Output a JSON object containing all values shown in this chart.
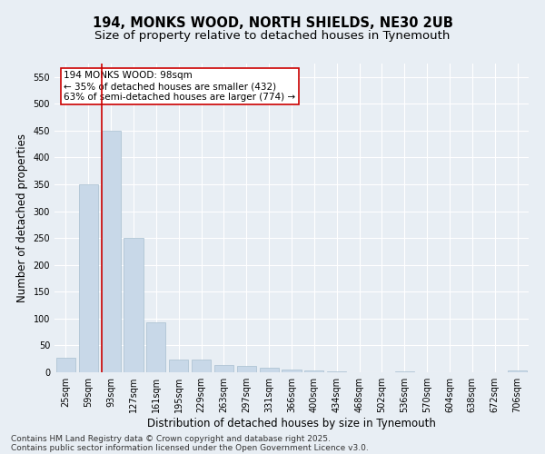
{
  "title_line1": "194, MONKS WOOD, NORTH SHIELDS, NE30 2UB",
  "title_line2": "Size of property relative to detached houses in Tynemouth",
  "xlabel": "Distribution of detached houses by size in Tynemouth",
  "ylabel": "Number of detached properties",
  "bar_color": "#c8d8e8",
  "bar_edge_color": "#a8bfd0",
  "background_color": "#e8eef4",
  "grid_color": "#ffffff",
  "categories": [
    "25sqm",
    "59sqm",
    "93sqm",
    "127sqm",
    "161sqm",
    "195sqm",
    "229sqm",
    "263sqm",
    "297sqm",
    "331sqm",
    "366sqm",
    "400sqm",
    "434sqm",
    "468sqm",
    "502sqm",
    "536sqm",
    "570sqm",
    "604sqm",
    "638sqm",
    "672sqm",
    "706sqm"
  ],
  "values": [
    27,
    350,
    450,
    250,
    93,
    24,
    23,
    13,
    11,
    8,
    5,
    4,
    1,
    0,
    0,
    1,
    0,
    0,
    0,
    0,
    3
  ],
  "ylim": [
    0,
    575
  ],
  "yticks": [
    0,
    50,
    100,
    150,
    200,
    250,
    300,
    350,
    400,
    450,
    500,
    550
  ],
  "property_line_bin": 2,
  "property_line_color": "#cc0000",
  "annotation_text": "194 MONKS WOOD: 98sqm\n← 35% of detached houses are smaller (432)\n63% of semi-detached houses are larger (774) →",
  "annotation_box_color": "#ffffff",
  "annotation_box_edge": "#cc0000",
  "footer_line1": "Contains HM Land Registry data © Crown copyright and database right 2025.",
  "footer_line2": "Contains public sector information licensed under the Open Government Licence v3.0.",
  "title_fontsize": 10.5,
  "subtitle_fontsize": 9.5,
  "tick_fontsize": 7,
  "xlabel_fontsize": 8.5,
  "ylabel_fontsize": 8.5,
  "annotation_fontsize": 7.5,
  "footer_fontsize": 6.5
}
